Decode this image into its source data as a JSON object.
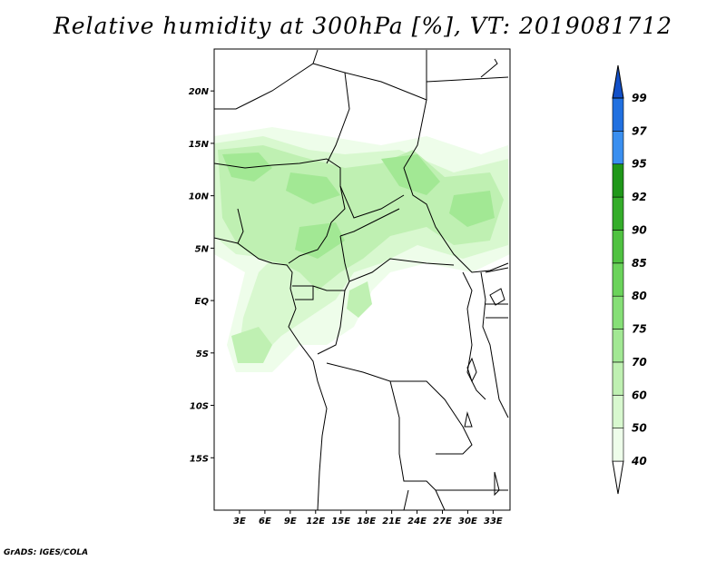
{
  "title": "Relative humidity at 300hPa [%], VT: 2019081712",
  "credit": "GrADS: IGES/COLA",
  "map": {
    "lat_range": [
      -20,
      24
    ],
    "lon_range": [
      0,
      35
    ],
    "lat_labels": [
      {
        "lat": 20,
        "text": "20N"
      },
      {
        "lat": 15,
        "text": "15N"
      },
      {
        "lat": 10,
        "text": "10N"
      },
      {
        "lat": 5,
        "text": "5N"
      },
      {
        "lat": 0,
        "text": "EQ"
      },
      {
        "lat": -5,
        "text": "5S"
      },
      {
        "lat": -10,
        "text": "10S"
      },
      {
        "lat": -15,
        "text": "15S"
      }
    ],
    "lon_labels": [
      {
        "lon": 3,
        "text": "3E"
      },
      {
        "lon": 6,
        "text": "6E"
      },
      {
        "lon": 9,
        "text": "9E"
      },
      {
        "lon": 12,
        "text": "12E"
      },
      {
        "lon": 15,
        "text": "15E"
      },
      {
        "lon": 18,
        "text": "18E"
      },
      {
        "lon": 21,
        "text": "21E"
      },
      {
        "lon": 24,
        "text": "24E"
      },
      {
        "lon": 27,
        "text": "27E"
      },
      {
        "lon": 30,
        "text": "30E"
      },
      {
        "lon": 33,
        "text": "33E"
      }
    ]
  },
  "colorbar": {
    "levels": [
      "40",
      "50",
      "60",
      "70",
      "75",
      "80",
      "85",
      "90",
      "92",
      "95",
      "97",
      "99"
    ],
    "colors": [
      "#eefdea",
      "#d8f8cf",
      "#bff0b2",
      "#a2e894",
      "#86df77",
      "#6bd35b",
      "#50c241",
      "#34ad2a",
      "#1f9719",
      "#3a8ff0",
      "#2170e0",
      "#1250c8"
    ]
  },
  "colors": {
    "land_outline": "#000000",
    "rh_40": "#eefdea",
    "rh_50": "#d8f8cf",
    "rh_60": "#bff0b2",
    "rh_70": "#a2e894"
  }
}
